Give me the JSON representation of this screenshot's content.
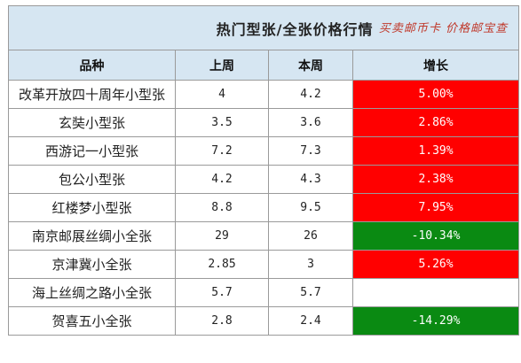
{
  "table": {
    "title": "热门型张/全张价格行情",
    "watermark": "买卖邮币卡 价格邮宝查",
    "headers": [
      "品种",
      "上周",
      "本周",
      "增长"
    ],
    "rows": [
      {
        "name": "改革开放四十周年小型张",
        "last": "4",
        "this": "4.2",
        "growth": "5.00%",
        "trend": "up"
      },
      {
        "name": "玄奘小型张",
        "last": "3.5",
        "this": "3.6",
        "growth": "2.86%",
        "trend": "up"
      },
      {
        "name": "西游记一小型张",
        "last": "7.2",
        "this": "7.3",
        "growth": "1.39%",
        "trend": "up"
      },
      {
        "name": "包公小型张",
        "last": "4.2",
        "this": "4.3",
        "growth": "2.38%",
        "trend": "up"
      },
      {
        "name": "红楼梦小型张",
        "last": "8.8",
        "this": "9.5",
        "growth": "7.95%",
        "trend": "up"
      },
      {
        "name": "南京邮展丝绸小全张",
        "last": "29",
        "this": "26",
        "growth": "-10.34%",
        "trend": "down"
      },
      {
        "name": "京津冀小全张",
        "last": "2.85",
        "this": "3",
        "growth": "5.26%",
        "trend": "up"
      },
      {
        "name": "海上丝绸之路小全张",
        "last": "5.7",
        "this": "5.7",
        "growth": "",
        "trend": "flat"
      },
      {
        "name": "贺喜五小全张",
        "last": "2.8",
        "this": "2.4",
        "growth": "-14.29%",
        "trend": "down"
      }
    ]
  },
  "colors": {
    "header_bg": "#d6e6f2",
    "up": "#ff0000",
    "down": "#0a8a12",
    "flat": "#ffffff",
    "watermark": "#c0392b"
  }
}
